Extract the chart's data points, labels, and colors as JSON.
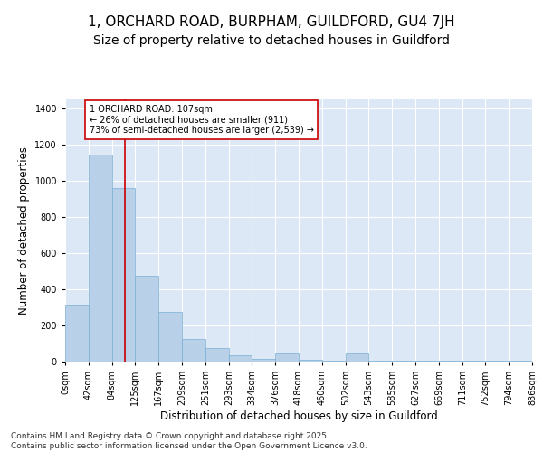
{
  "title_line1": "1, ORCHARD ROAD, BURPHAM, GUILDFORD, GU4 7JH",
  "title_line2": "Size of property relative to detached houses in Guildford",
  "xlabel": "Distribution of detached houses by size in Guildford",
  "ylabel": "Number of detached properties",
  "bar_color": "#b8d0e8",
  "bar_edge_color": "#7aafd4",
  "background_color": "#dce8f5",
  "annotation_text": "1 ORCHARD ROAD: 107sqm\n← 26% of detached houses are smaller (911)\n73% of semi-detached houses are larger (2,539) →",
  "vline_x": 107,
  "vline_color": "#cc0000",
  "footer_line1": "Contains HM Land Registry data © Crown copyright and database right 2025.",
  "footer_line2": "Contains public sector information licensed under the Open Government Licence v3.0.",
  "bin_edges": [
    0,
    42,
    84,
    125,
    167,
    209,
    251,
    293,
    334,
    376,
    418,
    460,
    502,
    543,
    585,
    627,
    669,
    711,
    752,
    794,
    836
  ],
  "bar_heights": [
    315,
    1145,
    960,
    475,
    275,
    125,
    75,
    35,
    15,
    45,
    10,
    5,
    45,
    5,
    5,
    5,
    5,
    5,
    5,
    5
  ],
  "ylim": [
    0,
    1450
  ],
  "yticks": [
    0,
    200,
    400,
    600,
    800,
    1000,
    1200,
    1400
  ],
  "title_fontsize": 11,
  "subtitle_fontsize": 10,
  "tick_label_fontsize": 7,
  "axis_label_fontsize": 8.5,
  "footer_fontsize": 6.5
}
